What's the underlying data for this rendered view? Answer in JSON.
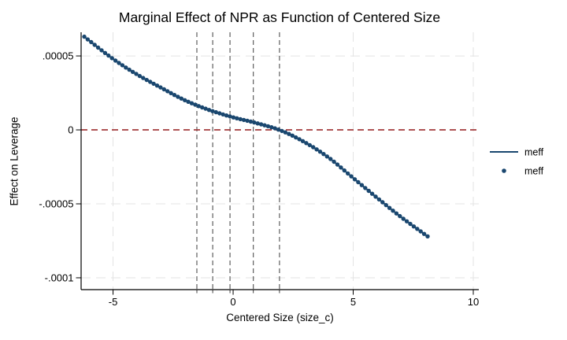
{
  "chart_data": {
    "type": "line",
    "title": "Marginal Effect of NPR as Function of Centered Size",
    "xlabel": "Centered Size (size_c)",
    "ylabel": "Effect on Leverage",
    "xlim": [
      -6.33,
      10.23
    ],
    "ylim": [
      -0.000108,
      6.6e-05
    ],
    "x_ticks": [
      -5,
      0,
      5,
      10
    ],
    "x_tick_labels": [
      "-5",
      "0",
      "5",
      "10"
    ],
    "y_ticks": [
      5e-05,
      0,
      -5e-05,
      -0.0001
    ],
    "y_tick_labels": [
      ".00005",
      "0",
      "-.00005",
      "-.0001"
    ],
    "grid": {
      "horizontal": true,
      "vertical": true,
      "style": "dashed"
    },
    "series": [
      {
        "name": "meff",
        "x": [
          -6.2,
          -5,
          -4,
          -3,
          -2,
          -1,
          0,
          1,
          2,
          3,
          4,
          5,
          6,
          7,
          8.1
        ],
        "y": [
          6.3e-05,
          4.8e-05,
          3.75e-05,
          2.85e-05,
          2e-05,
          1.35e-05,
          8.5e-06,
          4.5e-06,
          -5e-07,
          -8.5e-06,
          -1.9e-05,
          -3.25e-05,
          -4.6e-05,
          -5.9e-05,
          -7.2e-05
        ],
        "marker": "dot",
        "n_markers_shown": 100
      }
    ],
    "zero_line": {
      "y": 0,
      "style": "dashed"
    },
    "reference_xlines": {
      "values": [
        -1.51,
        -0.85,
        -0.13,
        0.84,
        1.93
      ],
      "style": "dashed"
    },
    "legend": {
      "position": "right-outside",
      "entries": [
        {
          "symbol": "line",
          "label": "meff"
        },
        {
          "symbol": "dot",
          "label": "meff"
        }
      ]
    },
    "colors": {
      "series": "#1a476f",
      "zero_line": "#a43b3d",
      "reference_lines": "#5e5e5e",
      "gridline": "#e3e3e3",
      "axis": "#000000",
      "text": "#000000"
    }
  }
}
